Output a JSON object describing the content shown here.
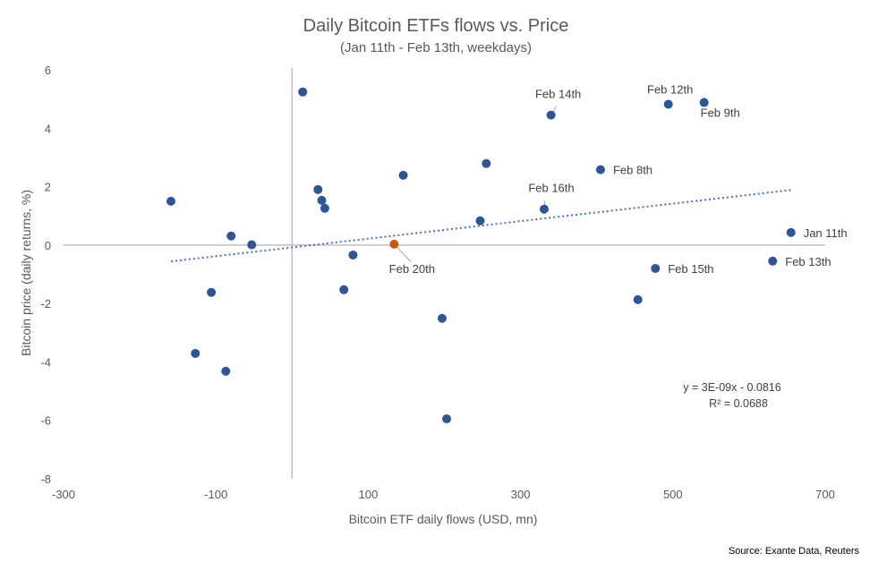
{
  "chart_data": {
    "type": "scatter",
    "title": "Daily Bitcoin ETFs flows vs. Price",
    "subtitle": "(Jan 11th - Feb 13th, weekdays)",
    "xlabel": "Bitcoin ETF daily flows (USD, mn)",
    "ylabel": "Bitcoin price (daily returns, %)",
    "xlim": [
      -300,
      700
    ],
    "ylim": [
      -8,
      6
    ],
    "xticks": [
      -300,
      -100,
      100,
      300,
      500,
      700
    ],
    "yticks": [
      -8,
      -6,
      -4,
      -2,
      0,
      2,
      4,
      6
    ],
    "grid": false,
    "legend": "none",
    "colors": {
      "point": "#2F5597",
      "highlight": "#C55A11",
      "trendline": "#4472C4",
      "axis": "#BFBFBF"
    },
    "series": [
      {
        "name": "Daily observations",
        "points": [
          {
            "x": -159,
            "y": 1.5,
            "label": ""
          },
          {
            "x": 14,
            "y": 5.24,
            "label": ""
          },
          {
            "x": 34,
            "y": 1.9,
            "label": ""
          },
          {
            "x": 39,
            "y": 1.53,
            "label": ""
          },
          {
            "x": 43,
            "y": 1.26,
            "label": ""
          },
          {
            "x": -80,
            "y": 0.31,
            "label": ""
          },
          {
            "x": -53,
            "y": 0.01,
            "label": ""
          },
          {
            "x": -106,
            "y": -1.62,
            "label": ""
          },
          {
            "x": -127,
            "y": -3.71,
            "label": ""
          },
          {
            "x": -87,
            "y": -4.32,
            "label": ""
          },
          {
            "x": 68,
            "y": -1.53,
            "label": ""
          },
          {
            "x": 80,
            "y": -0.34,
            "label": ""
          },
          {
            "x": 146,
            "y": 2.39,
            "label": ""
          },
          {
            "x": 255,
            "y": 2.79,
            "label": ""
          },
          {
            "x": 247,
            "y": 0.83,
            "label": ""
          },
          {
            "x": 340,
            "y": 4.45,
            "label": "Feb 14th",
            "label_pos": "above-leader"
          },
          {
            "x": 494,
            "y": 4.82,
            "label": "Feb 12th",
            "label_pos": "above"
          },
          {
            "x": 541,
            "y": 4.88,
            "label": "Feb 9th",
            "label_pos": "below"
          },
          {
            "x": 405,
            "y": 2.58,
            "label": "Feb 8th",
            "label_pos": "right"
          },
          {
            "x": 331,
            "y": 1.23,
            "label": "Feb 16th",
            "label_pos": "above-leader"
          },
          {
            "x": 655,
            "y": 0.43,
            "label": "Jan 11th",
            "label_pos": "right"
          },
          {
            "x": 631,
            "y": -0.55,
            "label": "Feb 13th",
            "label_pos": "right"
          },
          {
            "x": 477,
            "y": -0.8,
            "label": "Feb 15th",
            "label_pos": "right"
          },
          {
            "x": 454,
            "y": -1.87,
            "label": ""
          },
          {
            "x": 197,
            "y": -2.51,
            "label": ""
          },
          {
            "x": 203,
            "y": -5.95,
            "label": ""
          }
        ]
      },
      {
        "name": "Highlighted",
        "highlight": true,
        "points": [
          {
            "x": 134,
            "y": 0.03,
            "label": "Feb 20th",
            "label_pos": "below-leader"
          }
        ]
      }
    ],
    "trendline": {
      "type": "linear",
      "style": "dotted",
      "x_range": [
        -159,
        655
      ],
      "equation": "y = 3E-09x - 0.0816",
      "r_squared": "R² = 0.0688",
      "slope_per_mn": 0.003,
      "intercept": -0.0816
    },
    "source": "Source: Exante Data, Reuters"
  }
}
